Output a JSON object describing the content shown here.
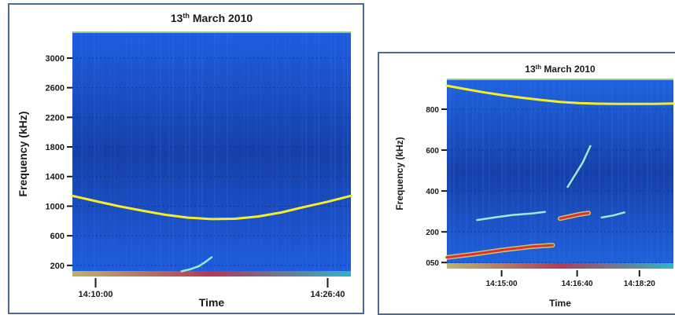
{
  "chart_data": [
    {
      "type": "heatmap",
      "title_main": "13",
      "title_sup": "th",
      "title_rest": " March 2010",
      "xlabel": "Time",
      "ylabel": "Frequency (kHz)",
      "ylim": [
        50,
        3360
      ],
      "xlim": [
        0,
        1200
      ],
      "yticks": [
        {
          "value": 200,
          "label": "200"
        },
        {
          "value": 600,
          "label": "600"
        },
        {
          "value": 1000,
          "label": "1000"
        },
        {
          "value": 1400,
          "label": "1400"
        },
        {
          "value": 1800,
          "label": "1800"
        },
        {
          "value": 2200,
          "label": "2200"
        },
        {
          "value": 2600,
          "label": "2600"
        },
        {
          "value": 3000,
          "label": "3000"
        }
      ],
      "xticks": [
        {
          "value": 100,
          "label": "14:10:00"
        },
        {
          "value": 1100,
          "label": "14:26:40"
        }
      ],
      "grid": true,
      "colors": {
        "background": "#1f5ee0",
        "dark": "#163fa8",
        "curve": "#f4ee2a",
        "signal": "#9fe8d8",
        "hot": "#e0302a"
      },
      "series": [
        {
          "style": "curve",
          "x": [
            0,
            100,
            200,
            300,
            400,
            500,
            600,
            700,
            800,
            900,
            1000,
            1100,
            1200
          ],
          "y": [
            1140,
            1068,
            999,
            940,
            884,
            845,
            825,
            830,
            860,
            915,
            990,
            1060,
            1140
          ]
        },
        {
          "style": "signal",
          "x": [
            470,
            510,
            545,
            570,
            600
          ],
          "y": [
            120,
            150,
            190,
            240,
            310
          ]
        }
      ]
    },
    {
      "type": "heatmap",
      "title_main": "13",
      "title_sup": "th",
      "title_rest": " March 2010",
      "xlabel": "Time",
      "ylabel": "Frequency (kHz)",
      "ylim": [
        20,
        950
      ],
      "xlim": [
        0,
        1200
      ],
      "yticks": [
        {
          "value": 50,
          "label": "050"
        },
        {
          "value": 200,
          "label": "200"
        },
        {
          "value": 400,
          "label": "400"
        },
        {
          "value": 600,
          "label": "600"
        },
        {
          "value": 800,
          "label": "800"
        }
      ],
      "xticks": [
        {
          "value": 290,
          "label": "14:15:00"
        },
        {
          "value": 690,
          "label": "14:16:40"
        },
        {
          "value": 1020,
          "label": "14:18:20"
        }
      ],
      "grid": true,
      "colors": {
        "background": "#2064e0",
        "dark": "#163fa8",
        "curve": "#f4ee2a",
        "signal": "#9fe8d8",
        "hot": "#e0302a"
      },
      "series": [
        {
          "style": "curve",
          "x": [
            0,
            100,
            200,
            300,
            400,
            500,
            600,
            700,
            800,
            900,
            1000,
            1100,
            1200
          ],
          "y": [
            915,
            898,
            882,
            868,
            856,
            845,
            836,
            830,
            827,
            826,
            826,
            826,
            828
          ]
        },
        {
          "style": "signal",
          "x": [
            160,
            250,
            350,
            450,
            520
          ],
          "y": [
            258,
            270,
            283,
            290,
            298
          ]
        },
        {
          "style": "hot",
          "x": [
            0,
            150,
            300,
            450,
            560
          ],
          "y": [
            75,
            92,
            112,
            128,
            135
          ]
        },
        {
          "style": "hot",
          "x": [
            600,
            650,
            700,
            750
          ],
          "y": [
            265,
            275,
            285,
            292
          ]
        },
        {
          "style": "signal",
          "x": [
            640,
            680,
            720,
            760
          ],
          "y": [
            420,
            480,
            540,
            620
          ]
        },
        {
          "style": "signal",
          "x": [
            820,
            880,
            940
          ],
          "y": [
            270,
            280,
            295
          ]
        }
      ]
    }
  ]
}
